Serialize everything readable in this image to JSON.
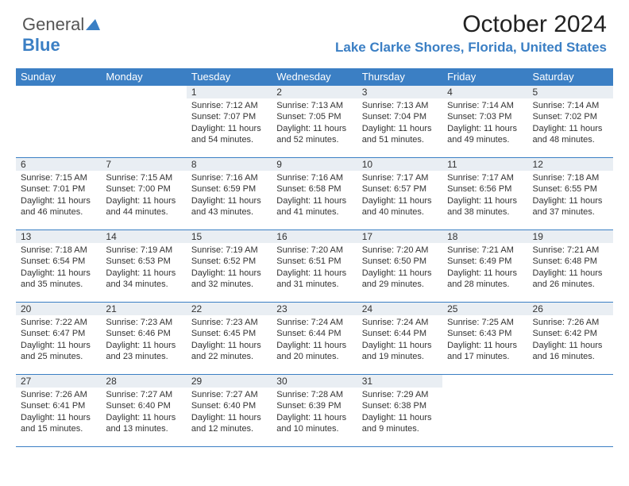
{
  "brand": {
    "part1": "General",
    "part2": "Blue"
  },
  "header": {
    "month_title": "October 2024",
    "location": "Lake Clarke Shores, Florida, United States"
  },
  "style": {
    "accent_color": "#3b7fc4",
    "daynum_bg": "#e9eef3",
    "text_color": "#333333",
    "body_font_size": 11,
    "header_font_size": 13,
    "title_font_size": 30,
    "location_font_size": 17
  },
  "calendar": {
    "columns": [
      "Sunday",
      "Monday",
      "Tuesday",
      "Wednesday",
      "Thursday",
      "Friday",
      "Saturday"
    ],
    "weeks": [
      [
        null,
        null,
        {
          "day": "1",
          "sunrise": "7:12 AM",
          "sunset": "7:07 PM",
          "daylight": "11 hours and 54 minutes."
        },
        {
          "day": "2",
          "sunrise": "7:13 AM",
          "sunset": "7:05 PM",
          "daylight": "11 hours and 52 minutes."
        },
        {
          "day": "3",
          "sunrise": "7:13 AM",
          "sunset": "7:04 PM",
          "daylight": "11 hours and 51 minutes."
        },
        {
          "day": "4",
          "sunrise": "7:14 AM",
          "sunset": "7:03 PM",
          "daylight": "11 hours and 49 minutes."
        },
        {
          "day": "5",
          "sunrise": "7:14 AM",
          "sunset": "7:02 PM",
          "daylight": "11 hours and 48 minutes."
        }
      ],
      [
        {
          "day": "6",
          "sunrise": "7:15 AM",
          "sunset": "7:01 PM",
          "daylight": "11 hours and 46 minutes."
        },
        {
          "day": "7",
          "sunrise": "7:15 AM",
          "sunset": "7:00 PM",
          "daylight": "11 hours and 44 minutes."
        },
        {
          "day": "8",
          "sunrise": "7:16 AM",
          "sunset": "6:59 PM",
          "daylight": "11 hours and 43 minutes."
        },
        {
          "day": "9",
          "sunrise": "7:16 AM",
          "sunset": "6:58 PM",
          "daylight": "11 hours and 41 minutes."
        },
        {
          "day": "10",
          "sunrise": "7:17 AM",
          "sunset": "6:57 PM",
          "daylight": "11 hours and 40 minutes."
        },
        {
          "day": "11",
          "sunrise": "7:17 AM",
          "sunset": "6:56 PM",
          "daylight": "11 hours and 38 minutes."
        },
        {
          "day": "12",
          "sunrise": "7:18 AM",
          "sunset": "6:55 PM",
          "daylight": "11 hours and 37 minutes."
        }
      ],
      [
        {
          "day": "13",
          "sunrise": "7:18 AM",
          "sunset": "6:54 PM",
          "daylight": "11 hours and 35 minutes."
        },
        {
          "day": "14",
          "sunrise": "7:19 AM",
          "sunset": "6:53 PM",
          "daylight": "11 hours and 34 minutes."
        },
        {
          "day": "15",
          "sunrise": "7:19 AM",
          "sunset": "6:52 PM",
          "daylight": "11 hours and 32 minutes."
        },
        {
          "day": "16",
          "sunrise": "7:20 AM",
          "sunset": "6:51 PM",
          "daylight": "11 hours and 31 minutes."
        },
        {
          "day": "17",
          "sunrise": "7:20 AM",
          "sunset": "6:50 PM",
          "daylight": "11 hours and 29 minutes."
        },
        {
          "day": "18",
          "sunrise": "7:21 AM",
          "sunset": "6:49 PM",
          "daylight": "11 hours and 28 minutes."
        },
        {
          "day": "19",
          "sunrise": "7:21 AM",
          "sunset": "6:48 PM",
          "daylight": "11 hours and 26 minutes."
        }
      ],
      [
        {
          "day": "20",
          "sunrise": "7:22 AM",
          "sunset": "6:47 PM",
          "daylight": "11 hours and 25 minutes."
        },
        {
          "day": "21",
          "sunrise": "7:23 AM",
          "sunset": "6:46 PM",
          "daylight": "11 hours and 23 minutes."
        },
        {
          "day": "22",
          "sunrise": "7:23 AM",
          "sunset": "6:45 PM",
          "daylight": "11 hours and 22 minutes."
        },
        {
          "day": "23",
          "sunrise": "7:24 AM",
          "sunset": "6:44 PM",
          "daylight": "11 hours and 20 minutes."
        },
        {
          "day": "24",
          "sunrise": "7:24 AM",
          "sunset": "6:44 PM",
          "daylight": "11 hours and 19 minutes."
        },
        {
          "day": "25",
          "sunrise": "7:25 AM",
          "sunset": "6:43 PM",
          "daylight": "11 hours and 17 minutes."
        },
        {
          "day": "26",
          "sunrise": "7:26 AM",
          "sunset": "6:42 PM",
          "daylight": "11 hours and 16 minutes."
        }
      ],
      [
        {
          "day": "27",
          "sunrise": "7:26 AM",
          "sunset": "6:41 PM",
          "daylight": "11 hours and 15 minutes."
        },
        {
          "day": "28",
          "sunrise": "7:27 AM",
          "sunset": "6:40 PM",
          "daylight": "11 hours and 13 minutes."
        },
        {
          "day": "29",
          "sunrise": "7:27 AM",
          "sunset": "6:40 PM",
          "daylight": "11 hours and 12 minutes."
        },
        {
          "day": "30",
          "sunrise": "7:28 AM",
          "sunset": "6:39 PM",
          "daylight": "11 hours and 10 minutes."
        },
        {
          "day": "31",
          "sunrise": "7:29 AM",
          "sunset": "6:38 PM",
          "daylight": "11 hours and 9 minutes."
        },
        null,
        null
      ]
    ]
  }
}
